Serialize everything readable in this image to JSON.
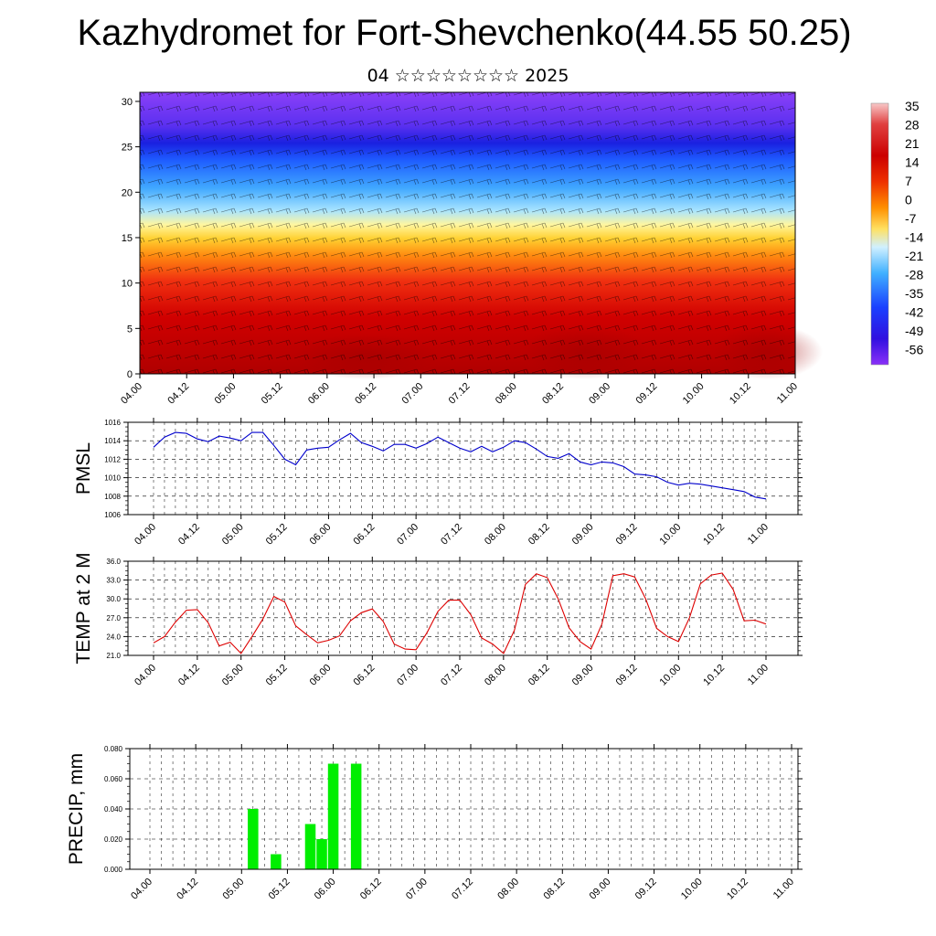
{
  "header": {
    "title": "Kazhydromet for Fort-Shevchenko(44.55 50.25)",
    "subtitle": "04 ☆☆☆☆☆☆☆☆ 2025"
  },
  "chart_data": [
    {
      "type": "heatmap",
      "title": "",
      "x_tick_labels": [
        "04.00",
        "04.12",
        "05.00",
        "05.12",
        "06.00",
        "06.12",
        "07.00",
        "07.12",
        "08.00",
        "08.12",
        "09.00",
        "09.12",
        "10.00",
        "10.12",
        "11.00"
      ],
      "y_ticks": [
        0,
        5,
        10,
        15,
        20,
        25,
        30
      ],
      "ylim": [
        0,
        31
      ],
      "colorbar_labels": [
        "35",
        "28",
        "21",
        "14",
        "7",
        "0",
        "-7",
        "-14",
        "-21",
        "-28",
        "-35",
        "-42",
        "-49",
        "-56"
      ],
      "overlay": "wind barbs",
      "colors": {
        "warm": "#c80000",
        "cold": "#7a28f0"
      }
    },
    {
      "type": "line",
      "ylabel": "PMSL",
      "y_ticks": [
        "1006",
        "1008",
        "1010",
        "1012",
        "1014",
        "1016"
      ],
      "ylim": [
        1006,
        1016
      ],
      "x_tick_labels": [
        "04.00",
        "04.12",
        "05.00",
        "05.12",
        "06.00",
        "06.12",
        "07.00",
        "07.12",
        "08.00",
        "08.12",
        "09.00",
        "09.12",
        "10.00",
        "10.12",
        "11.00"
      ],
      "color": "#0000cc",
      "values": [
        1013.3,
        1014.4,
        1014.9,
        1014.8,
        1014.2,
        1013.9,
        1014.5,
        1014.3,
        1014.0,
        1014.9,
        1014.9,
        1013.5,
        1012.0,
        1011.4,
        1013.0,
        1013.2,
        1013.3,
        1014.1,
        1014.8,
        1013.8,
        1013.4,
        1012.9,
        1013.6,
        1013.6,
        1013.2,
        1013.7,
        1014.4,
        1013.8,
        1013.2,
        1012.8,
        1013.4,
        1012.8,
        1013.3,
        1014.0,
        1013.8,
        1013.1,
        1012.3,
        1012.1,
        1012.6,
        1011.7,
        1011.4,
        1011.7,
        1011.6,
        1011.2,
        1010.4,
        1010.3,
        1010.1,
        1009.5,
        1009.2,
        1009.4,
        1009.3,
        1009.1,
        1008.9,
        1008.7,
        1008.5,
        1007.9,
        1007.7
      ]
    },
    {
      "type": "line",
      "ylabel": "TEMP at 2 M",
      "y_ticks": [
        "21.0",
        "24.0",
        "27.0",
        "30.0",
        "33.0",
        "36.0"
      ],
      "ylim": [
        21,
        36
      ],
      "x_tick_labels": [
        "04.00",
        "04.12",
        "05.00",
        "05.12",
        "06.00",
        "06.12",
        "07.00",
        "07.12",
        "08.00",
        "08.12",
        "09.00",
        "09.12",
        "10.00",
        "10.12",
        "11.00"
      ],
      "color": "#dd0000",
      "values": [
        23.0,
        24.0,
        26.3,
        28.2,
        28.3,
        26.2,
        22.5,
        23.1,
        21.3,
        24.0,
        26.8,
        30.4,
        29.5,
        25.7,
        24.3,
        23.0,
        23.4,
        24.1,
        26.5,
        27.8,
        28.4,
        26.4,
        22.8,
        22.0,
        21.9,
        24.6,
        28.0,
        29.8,
        29.8,
        27.5,
        23.8,
        22.8,
        21.3,
        25.0,
        32.3,
        34.0,
        33.4,
        30.0,
        25.4,
        23.2,
        22.0,
        26.0,
        33.7,
        34.0,
        33.5,
        30.0,
        25.3,
        24.0,
        23.2,
        27.0,
        32.4,
        33.8,
        34.1,
        31.5,
        26.5,
        26.6,
        26.0
      ]
    },
    {
      "type": "bar",
      "ylabel": "PRECIP, mm",
      "y_ticks": [
        "0.000",
        "0.020",
        "0.040",
        "0.060",
        "0.080"
      ],
      "ylim": [
        0,
        0.08
      ],
      "x_tick_labels": [
        "04.00",
        "04.12",
        "05.00",
        "05.12",
        "06.00",
        "06.12",
        "07.00",
        "07.12",
        "08.00",
        "08.12",
        "09.00",
        "09.12",
        "10.00",
        "10.12",
        "11.00"
      ],
      "color": "#00ee00",
      "values": [
        0,
        0,
        0,
        0,
        0,
        0,
        0,
        0,
        0,
        0.04,
        0,
        0.01,
        0,
        0,
        0.03,
        0.02,
        0.07,
        0,
        0.07,
        0,
        0,
        0,
        0,
        0,
        0,
        0,
        0,
        0,
        0,
        0,
        0,
        0,
        0,
        0,
        0,
        0,
        0,
        0,
        0,
        0,
        0,
        0,
        0,
        0,
        0,
        0,
        0,
        0,
        0,
        0,
        0,
        0,
        0,
        0,
        0,
        0,
        0
      ]
    }
  ]
}
